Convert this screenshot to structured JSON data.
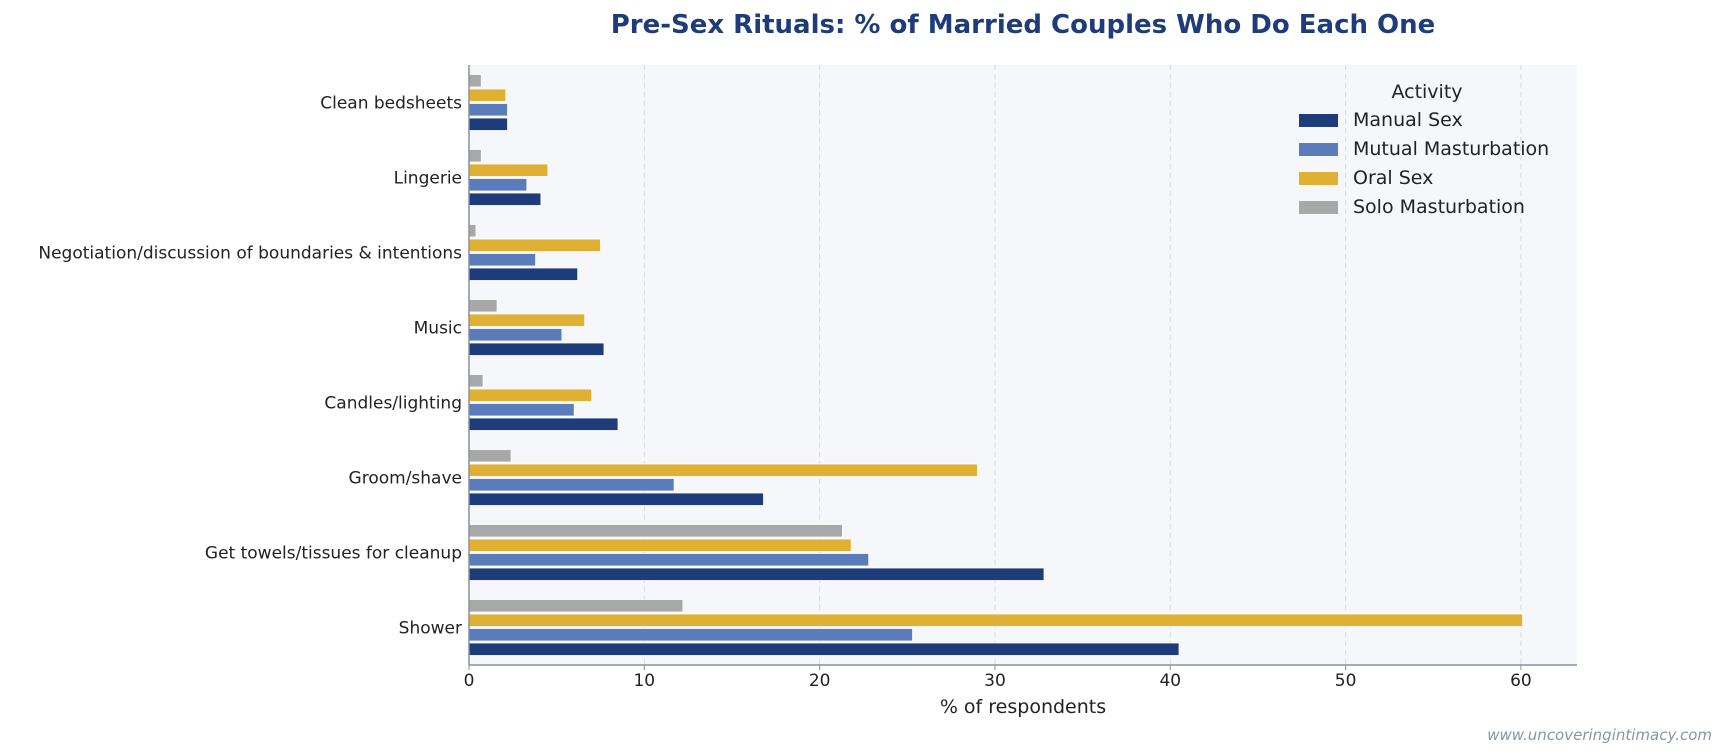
{
  "chart_data": {
    "type": "bar",
    "orientation": "horizontal",
    "title": "Pre-Sex Rituals: % of Married Couples Who Do Each One",
    "xlabel": "% of respondents",
    "ylabel": "",
    "xlim": [
      0,
      63.2
    ],
    "xticks": [
      0,
      10,
      20,
      30,
      40,
      50,
      60
    ],
    "grid": "vertical-dashed",
    "legend_title": "Activity",
    "legend_position": "top-right",
    "categories": [
      "Clean bedsheets",
      "Lingerie",
      "Negotiation/discussion of boundaries & intentions",
      "Music",
      "Candles/lighting",
      "Groom/shave",
      "Get towels/tissues for cleanup",
      "Shower"
    ],
    "series": [
      {
        "name": "Manual Sex",
        "color": "#1f3c7a",
        "values": [
          2.2,
          4.1,
          6.2,
          7.7,
          8.5,
          16.8,
          32.8,
          40.5
        ]
      },
      {
        "name": "Mutual Masturbation",
        "color": "#5b7cba",
        "values": [
          2.2,
          3.3,
          3.8,
          5.3,
          6.0,
          11.7,
          22.8,
          25.3
        ]
      },
      {
        "name": "Oral Sex",
        "color": "#e0b035",
        "values": [
          2.1,
          4.5,
          7.5,
          6.6,
          7.0,
          29.0,
          21.8,
          60.1
        ]
      },
      {
        "name": "Solo Masturbation",
        "color": "#a8a8a8",
        "values": [
          0.7,
          0.7,
          0.4,
          1.6,
          0.8,
          2.4,
          21.3,
          12.2
        ]
      }
    ]
  },
  "watermark": "www.uncoveringintimacy.com"
}
